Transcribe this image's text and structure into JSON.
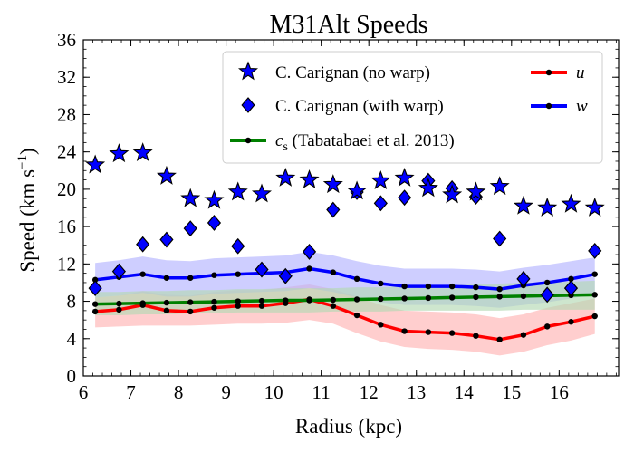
{
  "chart_data": {
    "type": "line",
    "title": "M31Alt Speeds",
    "xlabel": "Radius (kpc)",
    "ylabel_main": "Speed (km s",
    "ylabel_sup": "−1",
    "ylabel_close": ")",
    "xlim": [
      6,
      17.25
    ],
    "ylim": [
      0,
      36
    ],
    "xticks": [
      6,
      7,
      8,
      9,
      10,
      11,
      12,
      13,
      14,
      15,
      16
    ],
    "yticks": [
      0,
      4,
      8,
      12,
      16,
      20,
      24,
      28,
      32,
      36
    ],
    "grid": false,
    "legend_position": "top-right",
    "colors": {
      "u": "#ff0000",
      "w": "#0000ff",
      "cs": "#008000",
      "u_band": "#ffb3b3",
      "w_band": "#b3b3ff",
      "cs_band": "#b3d9b3",
      "marker_fill": "#0000ff"
    },
    "legend": {
      "stars": "C. Carignan (no warp)",
      "diamonds": "C. Carignan (with warp)",
      "cs_symbol": "c",
      "cs_sub": "s",
      "cs_text": " (Tabatabaei et al. 2013)",
      "u": "u",
      "w": "w"
    },
    "x": [
      6.25,
      6.75,
      7.25,
      7.75,
      8.25,
      8.75,
      9.25,
      9.75,
      10.25,
      10.75,
      11.25,
      11.75,
      12.25,
      12.75,
      13.25,
      13.75,
      14.25,
      14.75,
      15.25,
      15.75,
      16.25,
      16.75
    ],
    "series": [
      {
        "name": "u",
        "values": [
          6.9,
          7.1,
          7.6,
          7.0,
          6.9,
          7.3,
          7.5,
          7.5,
          7.8,
          8.2,
          7.5,
          6.5,
          5.5,
          4.8,
          4.7,
          4.6,
          4.3,
          3.9,
          4.4,
          5.3,
          5.8,
          6.4
        ],
        "band_low": [
          5.2,
          5.3,
          5.4,
          5.4,
          5.4,
          5.5,
          5.6,
          5.6,
          5.7,
          6.0,
          5.6,
          4.6,
          3.7,
          3.1,
          2.9,
          2.8,
          2.6,
          2.2,
          2.6,
          3.3,
          3.8,
          4.5
        ],
        "band_high": [
          8.4,
          8.6,
          9.1,
          8.7,
          8.6,
          9.0,
          9.2,
          9.2,
          9.5,
          9.8,
          9.3,
          8.5,
          7.6,
          7.0,
          6.9,
          6.8,
          6.6,
          6.2,
          6.6,
          7.3,
          7.8,
          8.3
        ]
      },
      {
        "name": "w",
        "values": [
          10.3,
          10.6,
          10.9,
          10.5,
          10.5,
          10.8,
          10.9,
          11.0,
          11.1,
          11.5,
          11.1,
          10.4,
          9.9,
          9.6,
          9.6,
          9.6,
          9.5,
          9.3,
          9.7,
          10.0,
          10.4,
          10.9
        ],
        "band_low": [
          8.4,
          8.6,
          8.9,
          8.5,
          8.5,
          8.8,
          8.9,
          9.0,
          9.1,
          9.4,
          9.0,
          8.4,
          7.9,
          7.6,
          7.6,
          7.6,
          7.5,
          7.3,
          7.6,
          7.9,
          8.3,
          8.8
        ],
        "band_high": [
          12.1,
          12.4,
          12.8,
          12.4,
          12.3,
          12.6,
          12.7,
          12.8,
          12.9,
          13.3,
          12.9,
          12.3,
          11.8,
          11.5,
          11.5,
          11.5,
          11.4,
          11.2,
          11.6,
          11.9,
          12.3,
          12.7
        ]
      },
      {
        "name": "c_s (Tabatabaei et al. 2013)",
        "values": [
          7.7,
          7.75,
          7.8,
          7.85,
          7.9,
          7.95,
          8.0,
          8.05,
          8.1,
          8.1,
          8.15,
          8.2,
          8.25,
          8.3,
          8.35,
          8.4,
          8.45,
          8.5,
          8.55,
          8.6,
          8.65,
          8.7
        ],
        "band_low": [
          6.5,
          6.5,
          6.6,
          6.6,
          6.7,
          6.7,
          6.8,
          6.8,
          6.8,
          6.8,
          6.9,
          6.9,
          6.9,
          7.0,
          7.0,
          7.0,
          7.0,
          7.0,
          7.1,
          7.1,
          7.1,
          7.1
        ],
        "band_high": [
          9.0,
          9.0,
          9.1,
          9.1,
          9.2,
          9.2,
          9.3,
          9.3,
          9.4,
          9.4,
          9.4,
          9.5,
          9.5,
          9.6,
          9.6,
          9.7,
          9.8,
          9.9,
          10.0,
          10.0,
          10.1,
          10.2
        ]
      }
    ],
    "stars": {
      "name": "C. Carignan (no warp)",
      "values": [
        22.6,
        23.8,
        23.9,
        21.4,
        19.0,
        18.8,
        19.7,
        19.5,
        21.2,
        21.0,
        20.5,
        19.8,
        20.9,
        21.2,
        20.1,
        19.4,
        19.7,
        20.3,
        18.2,
        18.0,
        18.4,
        18.0
      ]
    },
    "diamonds": {
      "name": "C. Carignan (with warp)",
      "values": [
        9.4,
        11.2,
        14.1,
        14.6,
        15.8,
        16.4,
        13.9,
        11.4,
        10.7,
        13.3,
        17.8,
        19.7,
        18.5,
        19.1,
        20.9,
        20.1,
        19.2,
        14.7,
        10.4,
        8.7,
        9.4,
        13.4
      ]
    }
  }
}
